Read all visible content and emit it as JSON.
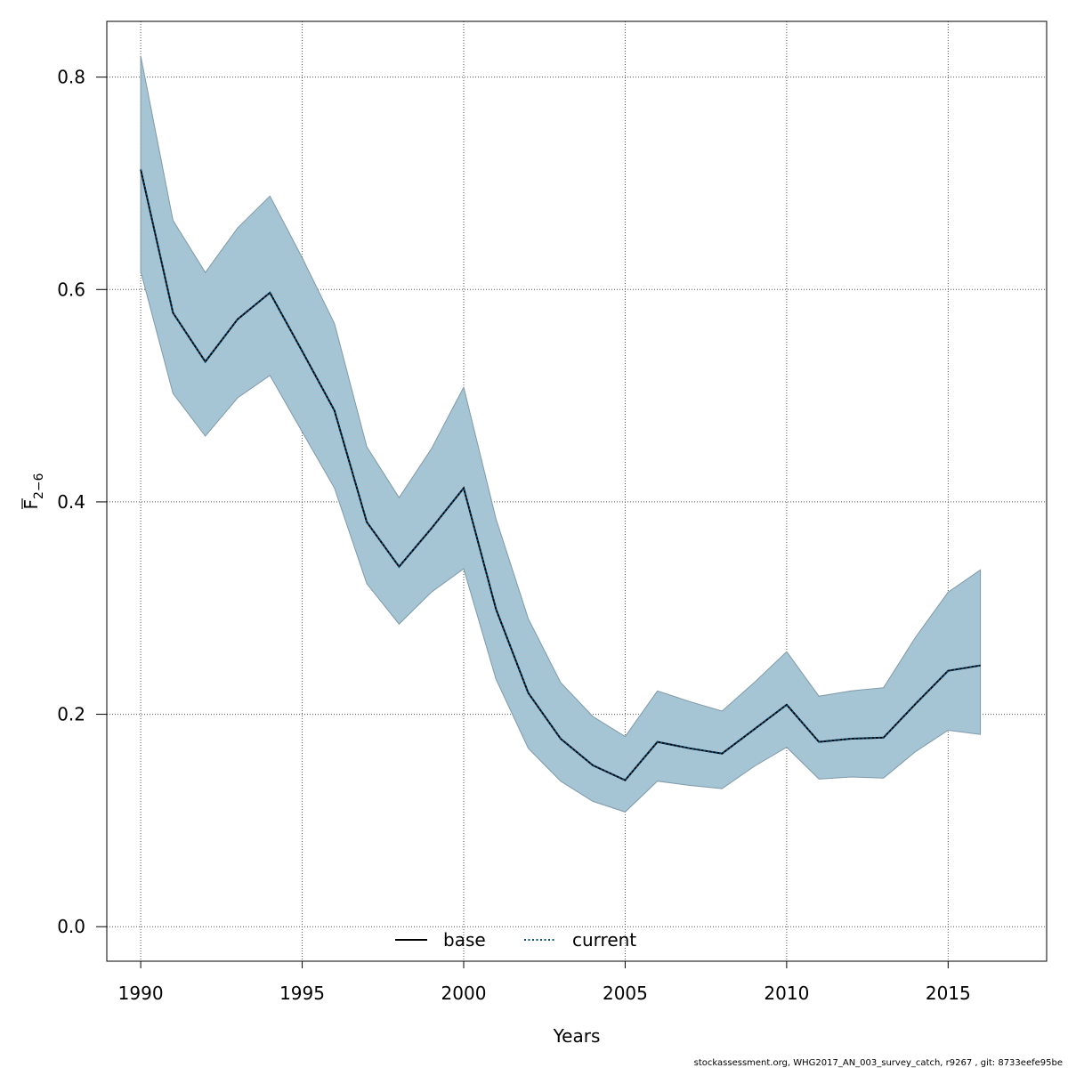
{
  "chart_data": {
    "type": "line",
    "xlabel": "Years",
    "ylabel_main": "F",
    "ylabel_sub": "2−6",
    "xlim": [
      1988.95,
      2018.05
    ],
    "ylim": [
      -0.0325,
      0.8525
    ],
    "xticks": [
      1990,
      1995,
      2000,
      2005,
      2010,
      2015
    ],
    "yticks": [
      0.0,
      0.2,
      0.4,
      0.6,
      0.8
    ],
    "ytick_labels": [
      "0.0",
      "0.2",
      "0.4",
      "0.6",
      "0.8"
    ],
    "grid": true,
    "legend_position": "bottom-center",
    "x": [
      1990,
      1991,
      1992,
      1993,
      1994,
      1995,
      1996,
      1997,
      1998,
      1999,
      2000,
      2001,
      2002,
      2003,
      2004,
      2005,
      2006,
      2007,
      2008,
      2009,
      2010,
      2011,
      2012,
      2013,
      2014,
      2015,
      2016
    ],
    "series": [
      {
        "name": "base",
        "style": "solid",
        "color": "#000000",
        "values": [
          0.713,
          0.578,
          0.532,
          0.572,
          0.597,
          0.542,
          0.486,
          0.381,
          0.339,
          0.375,
          0.413,
          0.299,
          0.22,
          0.177,
          0.152,
          0.138,
          0.174,
          0.168,
          0.163,
          0.186,
          0.209,
          0.174,
          0.177,
          0.178,
          0.21,
          0.241,
          0.246
        ]
      },
      {
        "name": "current",
        "style": "dotted",
        "color": "#00507A",
        "values": [
          0.713,
          0.578,
          0.532,
          0.572,
          0.597,
          0.542,
          0.486,
          0.381,
          0.339,
          0.375,
          0.413,
          0.299,
          0.22,
          0.177,
          0.152,
          0.138,
          0.174,
          0.168,
          0.163,
          0.186,
          0.209,
          0.174,
          0.177,
          0.178,
          0.21,
          0.241,
          0.246
        ]
      }
    ],
    "band": {
      "color": "#A5C4D4",
      "upper": [
        0.82,
        0.665,
        0.616,
        0.658,
        0.688,
        0.63,
        0.568,
        0.452,
        0.404,
        0.45,
        0.508,
        0.384,
        0.29,
        0.23,
        0.198,
        0.179,
        0.222,
        0.212,
        0.203,
        0.23,
        0.259,
        0.217,
        0.222,
        0.225,
        0.273,
        0.315,
        0.336
      ],
      "lower": [
        0.617,
        0.502,
        0.462,
        0.498,
        0.519,
        0.466,
        0.413,
        0.323,
        0.285,
        0.315,
        0.337,
        0.233,
        0.168,
        0.137,
        0.118,
        0.108,
        0.137,
        0.133,
        0.13,
        0.151,
        0.169,
        0.139,
        0.141,
        0.14,
        0.165,
        0.185,
        0.181
      ]
    }
  },
  "footer": "stockassessment.org, WHG2017_AN_003_survey_catch, r9267 , git: 8733eefe95be"
}
